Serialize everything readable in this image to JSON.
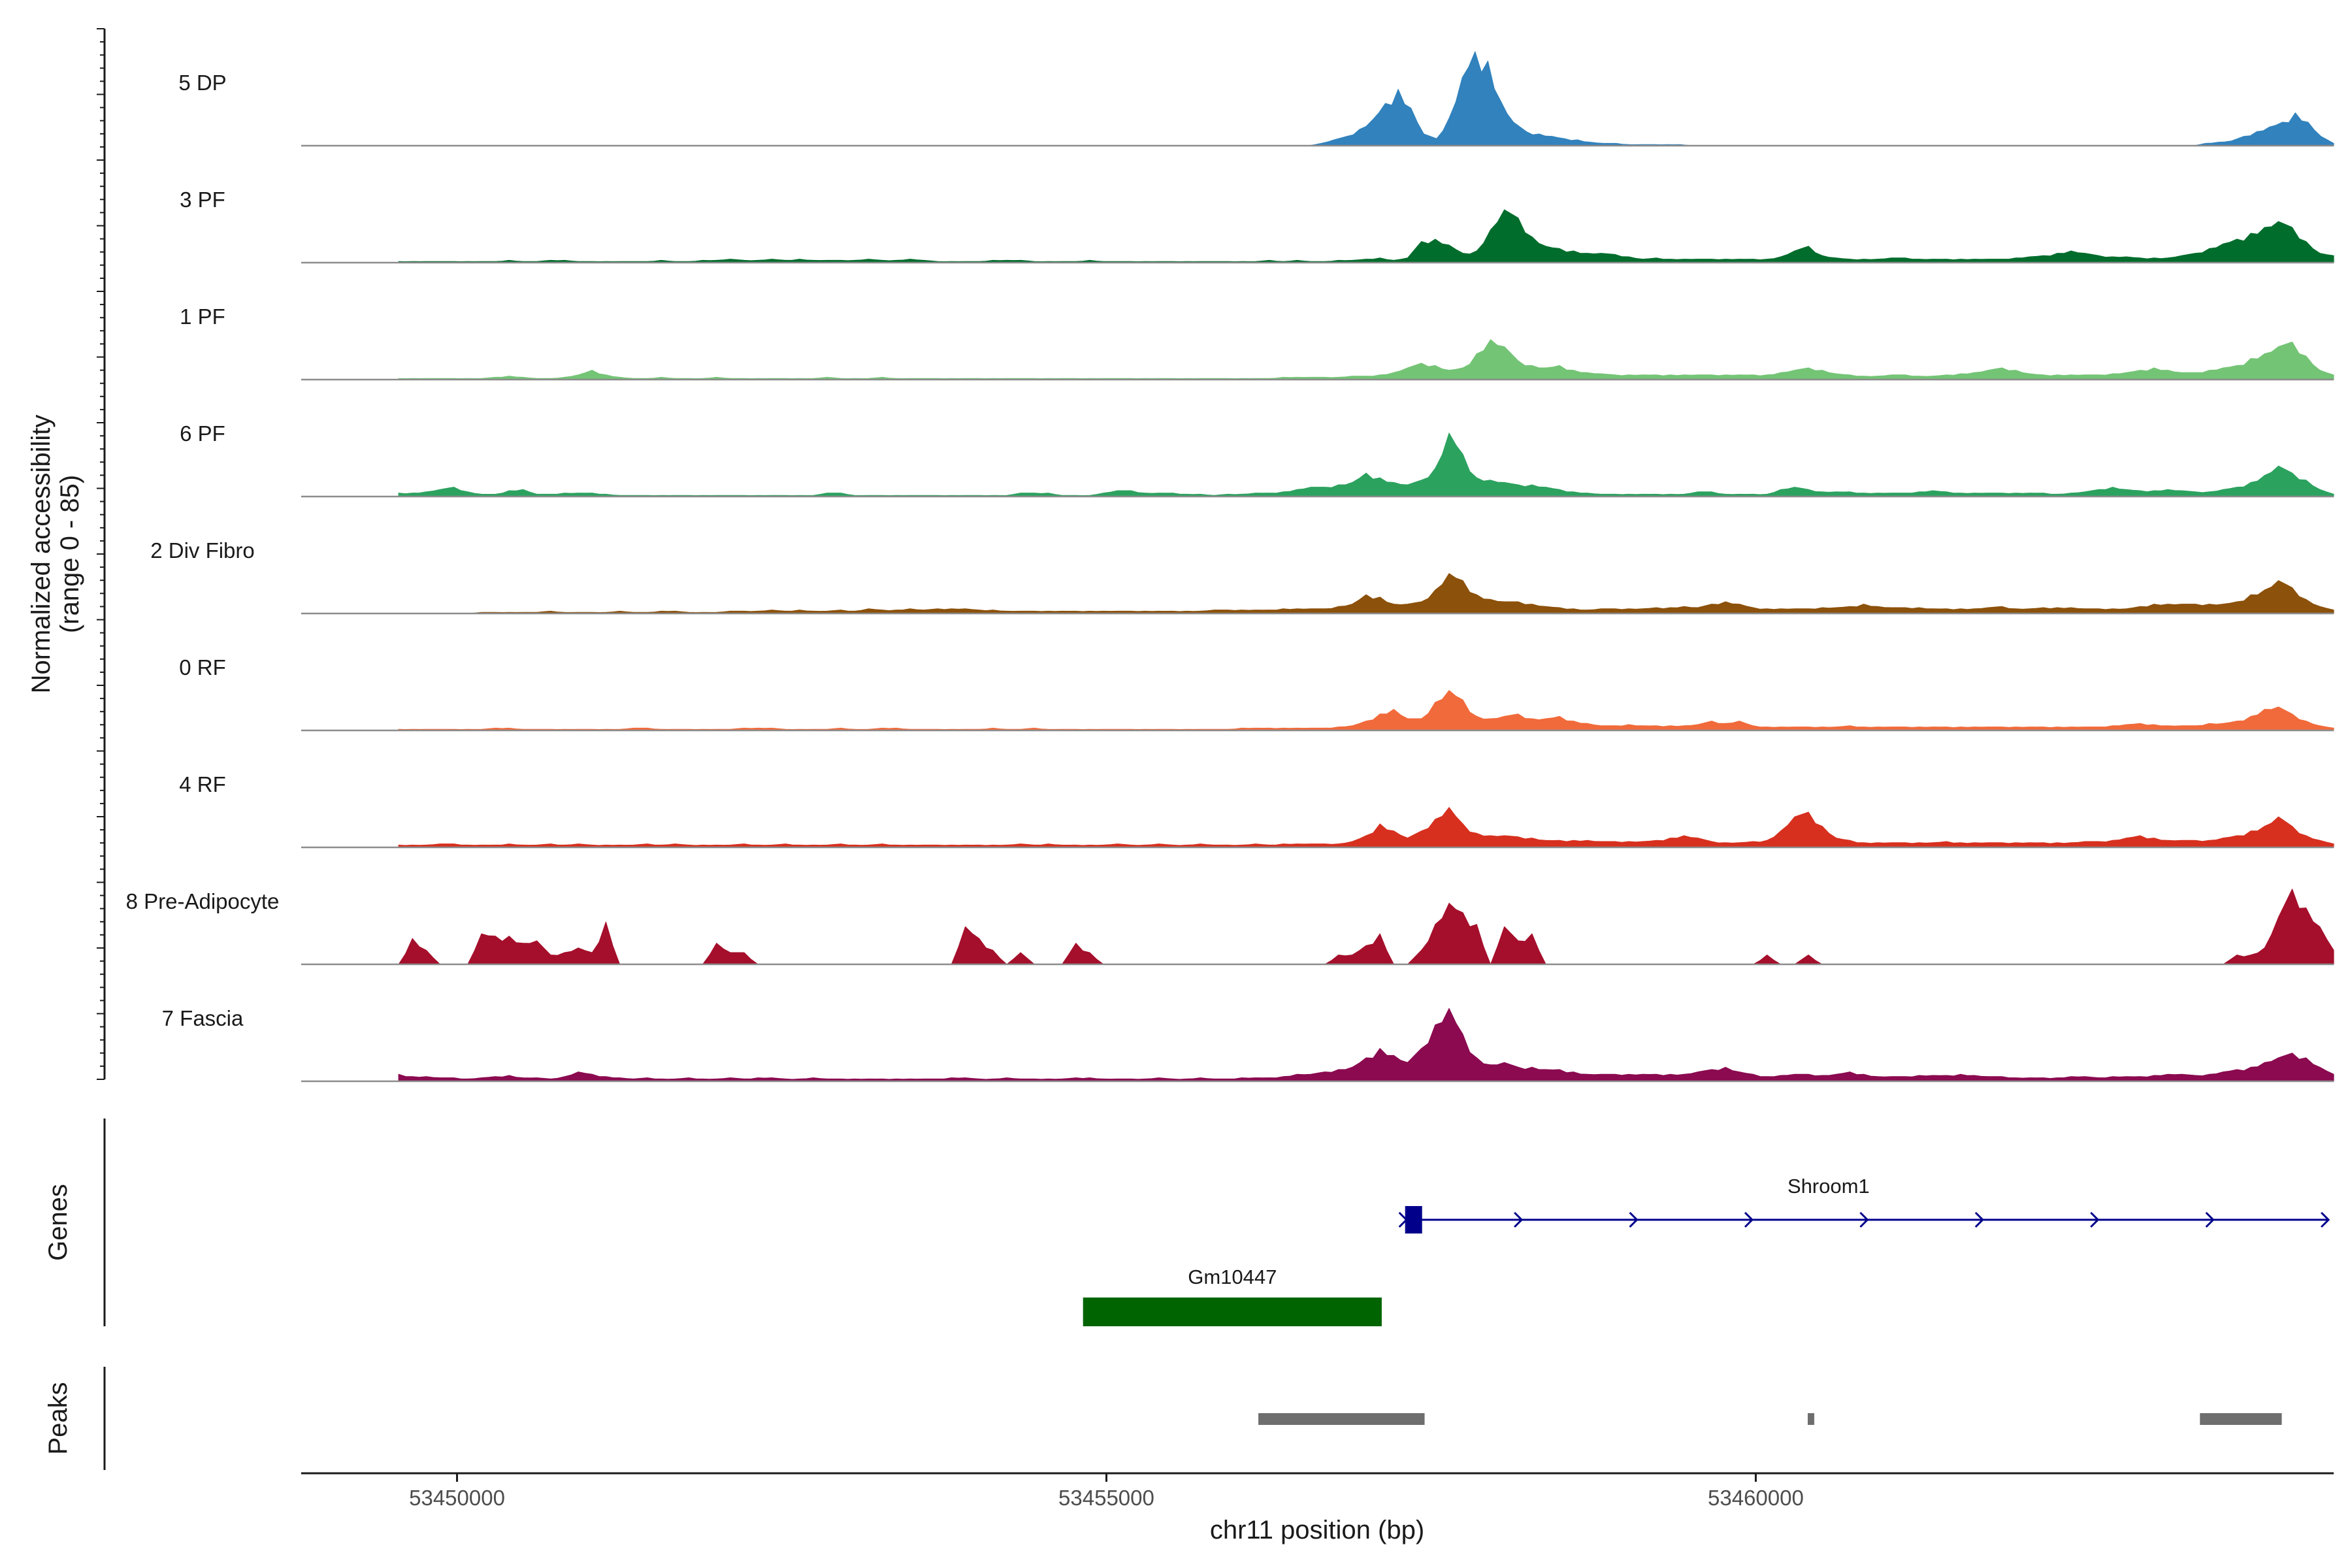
{
  "chart_data": {
    "type": "area",
    "title": "",
    "ylabel_line1": "Normalized accessibility",
    "ylabel_line2": "(range 0 - 85)",
    "xlabel": "chr11 position (bp)",
    "ylim": [
      0,
      85
    ],
    "xlim": [
      53448800,
      53464450
    ],
    "xticks": [
      53450000,
      53455000,
      53460000
    ],
    "xtick_labels": [
      "53450000",
      "53455000",
      "53460000"
    ],
    "profile_start": 53449550,
    "profile_end": 53464450,
    "tracks": [
      {
        "name": "5 DP",
        "color": "#3182BD",
        "values": [
          0,
          0,
          0,
          0,
          0,
          0,
          0,
          0,
          0,
          0,
          0,
          0,
          0,
          0,
          0,
          0,
          0,
          0,
          0,
          0,
          0,
          0,
          0,
          0,
          0,
          0,
          0,
          0,
          0,
          0,
          0,
          0,
          0,
          0,
          0,
          0,
          0,
          0,
          0,
          0,
          0,
          0,
          0,
          0,
          0,
          0,
          0,
          0,
          0,
          0,
          0,
          0,
          0,
          0,
          0,
          0,
          0,
          0,
          0,
          0,
          0,
          0,
          0,
          0,
          0,
          0,
          0,
          0,
          0,
          0,
          0,
          0,
          2,
          5,
          8,
          14,
          22,
          36,
          48,
          32,
          10,
          6,
          24,
          58,
          80,
          72,
          38,
          20,
          12,
          10,
          8,
          6,
          5,
          3,
          2,
          2,
          1,
          1,
          1,
          1,
          1,
          0,
          0,
          0,
          0,
          0,
          0,
          0,
          0,
          0,
          0,
          0,
          0,
          0,
          0,
          0,
          0,
          0,
          0,
          0,
          0,
          0,
          0,
          0,
          0,
          0,
          0,
          0,
          0,
          0,
          0,
          0,
          0,
          0,
          0,
          0,
          0,
          0,
          0,
          0,
          0,
          2,
          3,
          4,
          8,
          12,
          16,
          20,
          28,
          20,
          8,
          2
        ]
      },
      {
        "name": "3 PF",
        "color": "#006D2C",
        "values": [
          1,
          1,
          1,
          1,
          1,
          1,
          1,
          1,
          2,
          1,
          1,
          2,
          2,
          1,
          1,
          1,
          1,
          1,
          1,
          2,
          1,
          1,
          2,
          2,
          3,
          2,
          2,
          3,
          2,
          3,
          2,
          2,
          2,
          2,
          3,
          2,
          2,
          3,
          2,
          1,
          1,
          1,
          1,
          2,
          2,
          2,
          1,
          1,
          1,
          1,
          2,
          1,
          1,
          1,
          1,
          1,
          1,
          1,
          1,
          1,
          1,
          1,
          1,
          2,
          1,
          2,
          1,
          1,
          2,
          2,
          3,
          4,
          2,
          4,
          18,
          20,
          15,
          8,
          10,
          28,
          45,
          38,
          22,
          14,
          12,
          10,
          8,
          8,
          7,
          5,
          3,
          4,
          3,
          3,
          3,
          3,
          3,
          3,
          3,
          3,
          5,
          10,
          14,
          6,
          4,
          3,
          3,
          3,
          4,
          4,
          3,
          3,
          3,
          3,
          3,
          3,
          3,
          4,
          5,
          6,
          8,
          10,
          8,
          6,
          5,
          5,
          4,
          4,
          4,
          6,
          8,
          12,
          16,
          20,
          25,
          30,
          35,
          30,
          18,
          8,
          6
        ]
      },
      {
        "name": "1 PF",
        "color": "#74C476",
        "values": [
          1,
          1,
          1,
          1,
          1,
          1,
          1,
          2,
          3,
          2,
          1,
          1,
          2,
          4,
          8,
          4,
          2,
          1,
          1,
          2,
          1,
          1,
          1,
          2,
          1,
          1,
          1,
          1,
          1,
          1,
          1,
          2,
          1,
          1,
          1,
          2,
          1,
          1,
          1,
          1,
          1,
          1,
          1,
          1,
          1,
          1,
          1,
          1,
          1,
          1,
          1,
          1,
          1,
          1,
          1,
          1,
          1,
          1,
          1,
          1,
          1,
          1,
          1,
          1,
          2,
          2,
          2,
          2,
          2,
          3,
          3,
          4,
          6,
          10,
          14,
          12,
          8,
          10,
          22,
          34,
          28,
          16,
          12,
          10,
          12,
          8,
          6,
          5,
          4,
          4,
          4,
          4,
          4,
          4,
          4,
          4,
          4,
          4,
          4,
          4,
          6,
          8,
          10,
          8,
          5,
          4,
          3,
          3,
          4,
          4,
          3,
          3,
          4,
          5,
          6,
          8,
          10,
          8,
          5,
          4,
          4,
          4,
          4,
          4,
          5,
          6,
          8,
          10,
          8,
          6,
          6,
          8,
          10,
          12,
          18,
          22,
          28,
          32,
          20,
          8,
          4
        ]
      },
      {
        "name": "6 PF",
        "color": "#2CA25F",
        "values": [
          3,
          3,
          4,
          6,
          8,
          4,
          2,
          2,
          5,
          6,
          2,
          2,
          3,
          3,
          3,
          2,
          1,
          1,
          1,
          1,
          1,
          1,
          1,
          1,
          1,
          1,
          1,
          1,
          1,
          1,
          1,
          3,
          3,
          1,
          1,
          1,
          1,
          1,
          1,
          1,
          1,
          1,
          1,
          1,
          1,
          3,
          3,
          3,
          1,
          1,
          1,
          3,
          5,
          5,
          3,
          3,
          3,
          2,
          2,
          1,
          2,
          2,
          3,
          3,
          4,
          6,
          8,
          8,
          10,
          12,
          20,
          16,
          12,
          10,
          14,
          24,
          54,
          36,
          16,
          14,
          12,
          10,
          10,
          8,
          6,
          4,
          3,
          2,
          2,
          2,
          2,
          2,
          2,
          2,
          4,
          4,
          2,
          2,
          2,
          2,
          6,
          8,
          6,
          4,
          4,
          4,
          3,
          3,
          3,
          3,
          4,
          5,
          4,
          3,
          3,
          3,
          3,
          3,
          3,
          3,
          2,
          3,
          4,
          6,
          8,
          6,
          5,
          5,
          6,
          5,
          4,
          4,
          6,
          8,
          12,
          18,
          26,
          20,
          14,
          6,
          2
        ]
      },
      {
        "name": "2 Div Fibro",
        "color": "#8C510A",
        "values": [
          0,
          0,
          0,
          0,
          0,
          0,
          1,
          1,
          1,
          1,
          1,
          2,
          1,
          1,
          1,
          1,
          2,
          1,
          1,
          2,
          2,
          1,
          1,
          1,
          2,
          2,
          2,
          3,
          2,
          3,
          2,
          2,
          3,
          2,
          4,
          3,
          3,
          4,
          3,
          4,
          4,
          4,
          3,
          3,
          2,
          2,
          2,
          2,
          2,
          2,
          2,
          2,
          2,
          2,
          2,
          2,
          2,
          2,
          2,
          3,
          3,
          3,
          3,
          3,
          4,
          4,
          4,
          4,
          6,
          8,
          16,
          14,
          8,
          8,
          10,
          20,
          34,
          28,
          16,
          12,
          10,
          10,
          8,
          6,
          5,
          4,
          3,
          4,
          4,
          4,
          4,
          5,
          5,
          6,
          5,
          8,
          10,
          8,
          5,
          4,
          4,
          4,
          4,
          5,
          5,
          6,
          8,
          6,
          5,
          5,
          5,
          4,
          4,
          4,
          4,
          5,
          6,
          4,
          4,
          5,
          5,
          5,
          4,
          4,
          4,
          4,
          6,
          8,
          8,
          8,
          8,
          8,
          8,
          10,
          16,
          20,
          28,
          22,
          12,
          6,
          3
        ]
      },
      {
        "name": "0 RF",
        "color": "#F16A3B",
        "values": [
          1,
          1,
          1,
          1,
          1,
          1,
          1,
          2,
          2,
          1,
          1,
          1,
          1,
          1,
          1,
          1,
          1,
          2,
          2,
          1,
          1,
          1,
          1,
          1,
          1,
          2,
          2,
          2,
          1,
          1,
          1,
          1,
          2,
          1,
          1,
          2,
          2,
          1,
          1,
          1,
          1,
          1,
          1,
          2,
          1,
          1,
          2,
          1,
          1,
          1,
          1,
          1,
          1,
          1,
          1,
          1,
          1,
          1,
          1,
          1,
          1,
          2,
          2,
          2,
          2,
          2,
          2,
          2,
          3,
          4,
          8,
          14,
          18,
          10,
          10,
          24,
          34,
          26,
          12,
          10,
          12,
          14,
          10,
          10,
          12,
          8,
          6,
          4,
          4,
          5,
          4,
          4,
          4,
          4,
          5,
          8,
          6,
          8,
          4,
          3,
          3,
          3,
          3,
          3,
          3,
          4,
          3,
          3,
          3,
          3,
          3,
          3,
          3,
          3,
          3,
          3,
          3,
          3,
          3,
          3,
          3,
          3,
          3,
          3,
          4,
          5,
          6,
          5,
          4,
          4,
          4,
          6,
          6,
          8,
          12,
          18,
          20,
          14,
          8,
          4,
          2
        ]
      },
      {
        "name": "4 RF",
        "color": "#D7301F",
        "values": [
          2,
          2,
          2,
          3,
          3,
          2,
          2,
          2,
          3,
          2,
          2,
          3,
          2,
          3,
          2,
          2,
          2,
          2,
          3,
          2,
          3,
          2,
          2,
          2,
          2,
          3,
          2,
          2,
          3,
          2,
          2,
          2,
          3,
          2,
          2,
          3,
          2,
          2,
          2,
          2,
          2,
          2,
          2,
          2,
          2,
          3,
          2,
          3,
          2,
          2,
          2,
          2,
          3,
          2,
          2,
          3,
          2,
          2,
          3,
          2,
          2,
          2,
          3,
          2,
          3,
          3,
          3,
          3,
          3,
          5,
          10,
          20,
          14,
          8,
          14,
          24,
          34,
          20,
          12,
          10,
          10,
          9,
          8,
          6,
          6,
          6,
          6,
          5,
          5,
          5,
          5,
          6,
          8,
          10,
          8,
          5,
          4,
          4,
          5,
          6,
          14,
          26,
          30,
          18,
          8,
          6,
          4,
          4,
          4,
          4,
          4,
          4,
          5,
          4,
          4,
          4,
          4,
          4,
          4,
          4,
          4,
          4,
          5,
          5,
          6,
          8,
          10,
          8,
          6,
          6,
          6,
          6,
          8,
          10,
          14,
          18,
          26,
          18,
          10,
          6,
          3
        ]
      },
      {
        "name": "8 Pre-Adipocyte",
        "color": "#A50F2B",
        "values": [
          0,
          22,
          12,
          0,
          0,
          0,
          26,
          24,
          24,
          18,
          20,
          8,
          10,
          14,
          10,
          36,
          0,
          0,
          0,
          0,
          0,
          0,
          0,
          18,
          10,
          10,
          0,
          0,
          0,
          0,
          0,
          0,
          0,
          0,
          0,
          0,
          0,
          0,
          0,
          0,
          0,
          32,
          22,
          12,
          0,
          10,
          0,
          0,
          0,
          18,
          10,
          0,
          0,
          0,
          0,
          0,
          0,
          0,
          0,
          0,
          0,
          0,
          0,
          0,
          0,
          0,
          0,
          0,
          8,
          8,
          16,
          26,
          0,
          0,
          12,
          34,
          52,
          44,
          34,
          0,
          32,
          20,
          26,
          0,
          0,
          0,
          0,
          0,
          0,
          0,
          0,
          0,
          0,
          0,
          0,
          0,
          0,
          0,
          0,
          8,
          0,
          0,
          8,
          0,
          0,
          0,
          0,
          0,
          0,
          0,
          0,
          0,
          0,
          0,
          0,
          0,
          0,
          0,
          0,
          0,
          0,
          0,
          0,
          0,
          0,
          0,
          0,
          0,
          0,
          0,
          0,
          0,
          0,
          8,
          8,
          14,
          40,
          64,
          48,
          32,
          12
        ]
      },
      {
        "name": "7 Fascia",
        "color": "#8B0A50",
        "values": [
          6,
          4,
          4,
          3,
          3,
          2,
          3,
          4,
          5,
          3,
          3,
          2,
          4,
          8,
          6,
          4,
          3,
          2,
          3,
          2,
          2,
          3,
          2,
          2,
          3,
          2,
          3,
          3,
          2,
          2,
          3,
          2,
          2,
          2,
          2,
          2,
          2,
          2,
          2,
          2,
          3,
          3,
          2,
          2,
          3,
          2,
          2,
          2,
          2,
          3,
          3,
          2,
          2,
          2,
          2,
          3,
          2,
          2,
          3,
          2,
          2,
          3,
          3,
          3,
          4,
          6,
          6,
          8,
          10,
          12,
          20,
          28,
          22,
          16,
          28,
          48,
          62,
          40,
          20,
          14,
          16,
          12,
          12,
          10,
          10,
          8,
          6,
          6,
          6,
          6,
          6,
          6,
          6,
          6,
          8,
          10,
          12,
          8,
          6,
          4,
          5,
          6,
          6,
          5,
          6,
          8,
          6,
          4,
          4,
          4,
          5,
          5,
          5,
          6,
          5,
          4,
          4,
          3,
          3,
          3,
          3,
          4,
          4,
          3,
          4,
          4,
          4,
          5,
          6,
          6,
          5,
          6,
          8,
          10,
          12,
          16,
          20,
          24,
          20,
          12,
          6
        ]
      }
    ],
    "genes_title": "Genes",
    "genes": [
      {
        "name": "Shroom1",
        "start": 53457300,
        "end": 53464400,
        "exon_start": 53457300,
        "exon_end": 53457430,
        "strand": "+",
        "color": "#00008B"
      },
      {
        "name": "Gm10447",
        "start": 53454820,
        "end": 53457120,
        "exon_start": 53454820,
        "exon_end": 53457120,
        "strand": "+",
        "color": "#006400"
      }
    ],
    "peaks_title": "Peaks",
    "peaks": [
      {
        "start": 53456170,
        "end": 53457450
      },
      {
        "start": 53460400,
        "end": 53460450
      },
      {
        "start": 53463420,
        "end": 53464050
      }
    ]
  }
}
